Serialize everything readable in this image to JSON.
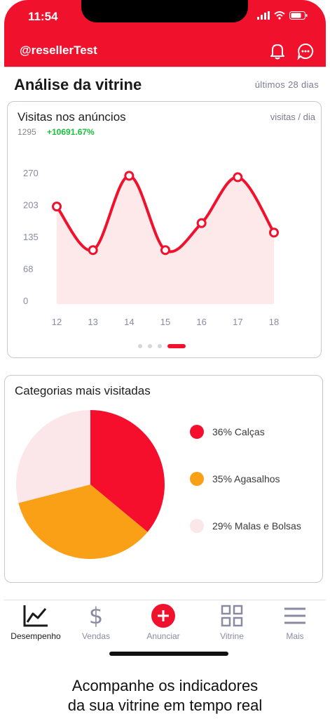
{
  "status_bar": {
    "time": "11:54"
  },
  "header": {
    "handle": "@resellerTest",
    "bell_icon": "bell-icon",
    "chat_icon": "chat-icon"
  },
  "page": {
    "title": "Análise da vitrine",
    "period": "últimos 28 dias"
  },
  "visits_card": {
    "title": "Visitas nos anúncios",
    "unit": "visitas / dia",
    "total": "1295",
    "growth": "+10691.67%"
  },
  "chart_data": [
    {
      "type": "area",
      "title": "Visitas nos anúncios",
      "xlabel": "",
      "ylabel": "",
      "x": [
        12,
        13,
        14,
        15,
        16,
        17,
        18
      ],
      "series": [
        {
          "name": "",
          "values": [
            200,
            108,
            265,
            108,
            165,
            262,
            145
          ]
        }
      ],
      "y_ticks": [
        "0",
        "68",
        "135",
        "203",
        "270"
      ],
      "ylim": [
        0,
        270
      ],
      "grid": false,
      "colors": {
        "line": "#f0122d",
        "fill": "#fde8ea"
      }
    },
    {
      "type": "pie",
      "title": "Categorias mais visitadas",
      "categories": [
        "Calças",
        "Agasalhos",
        "Malas e Bolsas"
      ],
      "values": [
        36,
        35,
        29
      ],
      "labels": [
        "36% Calças",
        "35% Agasalhos",
        "29% Malas e Bolsas"
      ],
      "colors": [
        "#f50f2c",
        "#f9a016",
        "#fbe6ea"
      ],
      "legend": "right"
    }
  ],
  "categories_card": {
    "title": "Categorias mais visitadas"
  },
  "pager": {
    "pages": 4,
    "active": 4
  },
  "tabs": [
    {
      "label": "Desempenho",
      "icon": "line-chart-icon",
      "active": true
    },
    {
      "label": "Vendas",
      "icon": "dollar-icon",
      "active": false
    },
    {
      "label": "Anunciar",
      "icon": "plus-circle-icon",
      "active": false
    },
    {
      "label": "Vitrine",
      "icon": "grid-icon",
      "active": false
    },
    {
      "label": "Mais",
      "icon": "menu-icon",
      "active": false
    }
  ],
  "caption": {
    "line1": "Acompanhe os indicadores",
    "line2": "da sua vitrine em tempo real"
  },
  "colors": {
    "brand": "#f0122d",
    "growth": "#19c23d",
    "muted": "#7b7b8e"
  }
}
